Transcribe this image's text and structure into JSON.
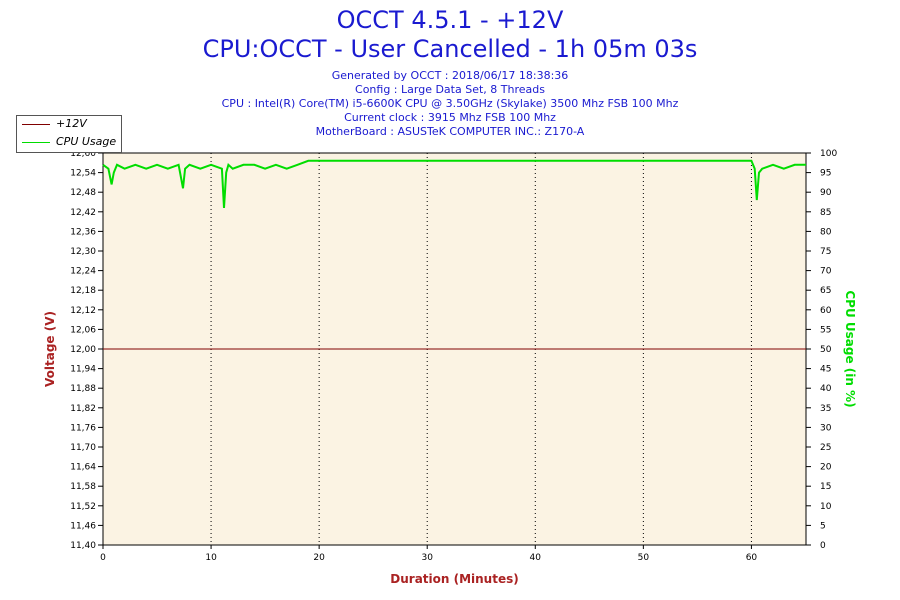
{
  "header": {
    "title": "OCCT 4.5.1 - +12V",
    "subtitle": "CPU:OCCT - User Cancelled - 1h 05m 03s",
    "info_lines": [
      "Generated by OCCT : 2018/06/17 18:38:36",
      "Config : Large Data Set, 8 Threads",
      "CPU : Intel(R) Core(TM) i5-6600K CPU @ 3.50GHz (Skylake) 3500 Mhz FSB 100 Mhz",
      "Current clock : 3915 Mhz FSB 100 Mhz",
      "MotherBoard : ASUSTeK COMPUTER INC.: Z170-A"
    ]
  },
  "legend": [
    {
      "label": "+12V",
      "color": "#800000"
    },
    {
      "label": "CPU Usage",
      "color": "#00dd00"
    }
  ],
  "colors": {
    "plot_background": "#fbf3e3",
    "grid": "#000000",
    "voltage_axis": "#aa2222",
    "cpu_axis": "#00dd00"
  },
  "chart_data": {
    "type": "line",
    "xlabel": "Duration (Minutes)",
    "ylabel": "Voltage (V)",
    "y2label": "CPU Usage (in %)",
    "xlim": [
      0,
      65.05
    ],
    "ylim": [
      11.4,
      12.6
    ],
    "y2lim": [
      0,
      100
    ],
    "x_ticks": [
      "0",
      "10",
      "20",
      "30",
      "40",
      "50",
      "60"
    ],
    "x_tick_values": [
      0,
      10,
      20,
      30,
      40,
      50,
      60
    ],
    "y_ticks": [
      "11,40",
      "11,46",
      "11,52",
      "11,58",
      "11,64",
      "11,70",
      "11,76",
      "11,82",
      "11,88",
      "11,94",
      "12,00",
      "12,06",
      "12,12",
      "12,18",
      "12,24",
      "12,30",
      "12,36",
      "12,42",
      "12,48",
      "12,54",
      "12,60"
    ],
    "y_tick_values": [
      11.4,
      11.46,
      11.52,
      11.58,
      11.64,
      11.7,
      11.76,
      11.82,
      11.88,
      11.94,
      12.0,
      12.06,
      12.12,
      12.18,
      12.24,
      12.3,
      12.36,
      12.42,
      12.48,
      12.54,
      12.6
    ],
    "y2_ticks": [
      "0",
      "5",
      "10",
      "15",
      "20",
      "25",
      "30",
      "35",
      "40",
      "45",
      "50",
      "55",
      "60",
      "65",
      "70",
      "75",
      "80",
      "85",
      "90",
      "95",
      "100"
    ],
    "y2_tick_values": [
      0,
      5,
      10,
      15,
      20,
      25,
      30,
      35,
      40,
      45,
      50,
      55,
      60,
      65,
      70,
      75,
      80,
      85,
      90,
      95,
      100
    ],
    "grid": true,
    "legend_position": "top-left",
    "series": [
      {
        "name": "+12V",
        "axis": "left",
        "x": [
          0,
          65.05
        ],
        "y": [
          12.0,
          12.0
        ]
      },
      {
        "name": "CPU Usage",
        "axis": "right",
        "x": [
          0,
          0.5,
          0.8,
          1.0,
          1.3,
          2,
          3,
          4,
          5,
          6,
          7,
          7.4,
          7.6,
          8,
          9,
          10,
          11,
          11.2,
          11.4,
          11.6,
          12,
          13,
          14,
          15,
          16,
          17,
          18,
          19,
          20,
          25,
          30,
          35,
          40,
          45,
          50,
          55,
          60,
          60.3,
          60.5,
          60.7,
          61,
          62,
          63,
          64,
          65.05
        ],
        "y": [
          97,
          96,
          92,
          95,
          97,
          96,
          97,
          96,
          97,
          96,
          97,
          91,
          96,
          97,
          96,
          97,
          96,
          86,
          95,
          97,
          96,
          97,
          97,
          96,
          97,
          96,
          97,
          98,
          98,
          98,
          98,
          98,
          98,
          98,
          98,
          98,
          98,
          96,
          88,
          95,
          96,
          97,
          96,
          97,
          97
        ]
      }
    ]
  }
}
